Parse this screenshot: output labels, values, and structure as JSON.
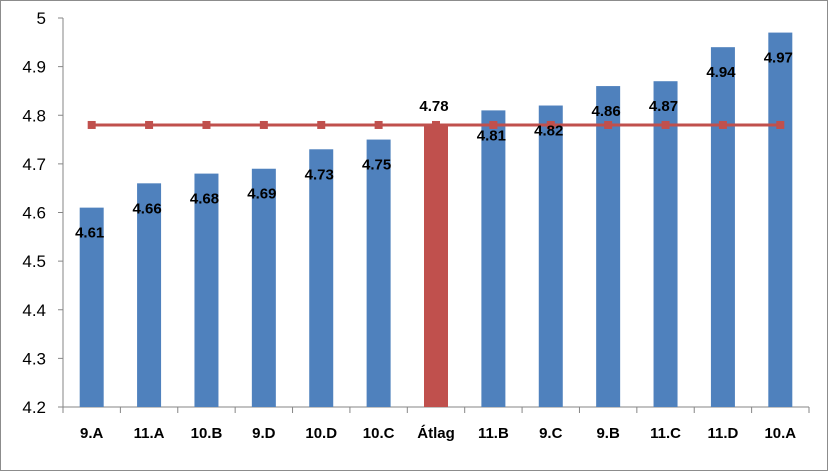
{
  "chart_data": {
    "type": "bar",
    "categories": [
      "9.A",
      "11.A",
      "10.B",
      "9.D",
      "10.D",
      "10.C",
      "Átlag",
      "11.B",
      "9.C",
      "9.B",
      "11.C",
      "11.D",
      "10.A"
    ],
    "values": [
      4.61,
      4.66,
      4.68,
      4.69,
      4.73,
      4.75,
      4.78,
      4.81,
      4.82,
      4.86,
      4.87,
      4.94,
      4.97
    ],
    "data_labels": [
      "4.61",
      "4.66",
      "4.68",
      "4.69",
      "4.73",
      "4.75",
      "4.78",
      "4.81",
      "4.82",
      "4.86",
      "4.87",
      "4.94",
      "4.97"
    ],
    "highlight_category": "Átlag",
    "reference_line": {
      "value": 4.78,
      "marker": "square"
    },
    "ylim": [
      4.2,
      5
    ],
    "yticks": [
      4.2,
      4.3,
      4.4,
      4.5,
      4.6,
      4.7,
      4.8,
      4.9,
      5
    ],
    "ytick_labels": [
      "4.2",
      "4.3",
      "4.4",
      "4.5",
      "4.6",
      "4.7",
      "4.8",
      "4.9",
      "5"
    ],
    "grid": false,
    "legend": "none",
    "title": "",
    "xlabel": "",
    "ylabel": "",
    "colors": {
      "bar": "#4F81BD",
      "highlight_bar": "#C0504D",
      "reference_line": "#C0504D",
      "axis": "#868686"
    }
  }
}
